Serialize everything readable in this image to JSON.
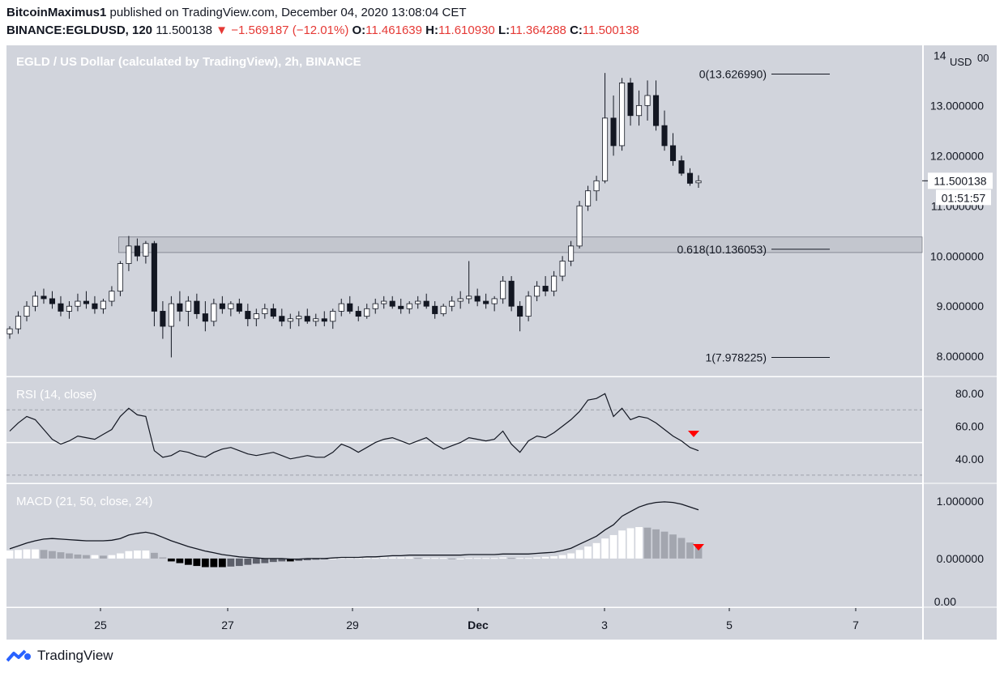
{
  "header": {
    "author": "BitcoinMaximus1",
    "published_text": "published on TradingView.com, December 04, 2020 13:08:04 CET",
    "symbol": "BINANCE:EGLDUSD, 120",
    "last": "11.500138",
    "change": "−1.569187 (−12.01%)",
    "o_label": "O:",
    "o_value": "11.461639",
    "h_label": "H:",
    "h_value": "11.610930",
    "l_label": "L:",
    "l_value": "11.364288",
    "c_label": "C:",
    "c_value": "11.500138"
  },
  "brand": {
    "name": "TradingView"
  },
  "colors": {
    "pane_bg": "#d1d4dc",
    "up_candle": "#ffffff",
    "down_candle": "#131722",
    "accent_red": "#ff0000",
    "hist_grey": "#a3a6af",
    "zone": "#c3c6ce"
  },
  "chart_data": [
    {
      "type": "candlestick",
      "title": "EGLD / US Dollar (calculated by TradingView), 2h, BINANCE",
      "y_unit": "USD",
      "ylim": [
        7.6,
        14.2
      ],
      "y_ticks": [
        "14",
        "13.000000",
        "12.000000",
        "11.000000",
        "10.000000",
        "9.000000",
        "8.000000"
      ],
      "x_ticks": [
        "25",
        "27",
        "29",
        "Dec",
        "3",
        "5",
        "7"
      ],
      "last_price_label": "11.500138",
      "countdown_label": "01:51:57",
      "fib_levels": [
        {
          "label": "0(13.626990)",
          "value": 13.62699
        },
        {
          "label": "0.618(10.136053)",
          "value": 10.136053
        },
        {
          "label": "1(7.978225)",
          "value": 7.978225
        }
      ],
      "support_zone": [
        10.07,
        10.38
      ],
      "ohlc": [
        [
          8.45,
          8.6,
          8.35,
          8.55
        ],
        [
          8.55,
          8.9,
          8.45,
          8.8
        ],
        [
          8.8,
          9.1,
          8.7,
          9.0
        ],
        [
          9.0,
          9.3,
          8.9,
          9.2
        ],
        [
          9.2,
          9.35,
          9.05,
          9.15
        ],
        [
          9.15,
          9.3,
          8.95,
          9.05
        ],
        [
          9.05,
          9.2,
          8.8,
          8.9
        ],
        [
          8.9,
          9.1,
          8.75,
          9.0
        ],
        [
          9.0,
          9.25,
          8.9,
          9.1
        ],
        [
          9.1,
          9.3,
          8.95,
          9.05
        ],
        [
          9.05,
          9.2,
          8.85,
          8.95
        ],
        [
          8.95,
          9.15,
          8.85,
          9.1
        ],
        [
          9.1,
          9.4,
          9.0,
          9.3
        ],
        [
          9.3,
          9.9,
          9.2,
          9.85
        ],
        [
          9.85,
          10.4,
          9.7,
          10.2
        ],
        [
          10.2,
          10.35,
          9.9,
          10.0
        ],
        [
          10.0,
          10.3,
          9.85,
          10.25
        ],
        [
          10.25,
          10.3,
          8.6,
          8.9
        ],
        [
          8.9,
          9.1,
          8.35,
          8.6
        ],
        [
          8.6,
          9.2,
          7.98,
          9.05
        ],
        [
          9.05,
          9.3,
          8.7,
          8.9
        ],
        [
          8.9,
          9.2,
          8.6,
          9.1
        ],
        [
          9.1,
          9.25,
          8.75,
          8.85
        ],
        [
          8.85,
          9.1,
          8.5,
          8.7
        ],
        [
          8.7,
          9.15,
          8.6,
          9.05
        ],
        [
          9.05,
          9.2,
          8.85,
          8.95
        ],
        [
          8.95,
          9.1,
          8.8,
          9.05
        ],
        [
          9.05,
          9.15,
          8.85,
          8.9
        ],
        [
          8.9,
          9.05,
          8.6,
          8.75
        ],
        [
          8.75,
          8.95,
          8.6,
          8.85
        ],
        [
          8.85,
          9.05,
          8.75,
          8.95
        ],
        [
          8.95,
          9.05,
          8.75,
          8.8
        ],
        [
          8.8,
          8.95,
          8.6,
          8.7
        ],
        [
          8.7,
          8.85,
          8.55,
          8.75
        ],
        [
          8.75,
          8.9,
          8.6,
          8.8
        ],
        [
          8.8,
          8.95,
          8.65,
          8.7
        ],
        [
          8.7,
          8.85,
          8.6,
          8.75
        ],
        [
          8.75,
          8.9,
          8.6,
          8.7
        ],
        [
          8.7,
          8.95,
          8.55,
          8.9
        ],
        [
          8.9,
          9.15,
          8.8,
          9.05
        ],
        [
          9.05,
          9.2,
          8.85,
          8.9
        ],
        [
          8.9,
          9.0,
          8.7,
          8.8
        ],
        [
          8.8,
          9.05,
          8.75,
          8.95
        ],
        [
          8.95,
          9.15,
          8.85,
          9.05
        ],
        [
          9.05,
          9.2,
          8.95,
          9.1
        ],
        [
          9.1,
          9.2,
          8.95,
          9.0
        ],
        [
          9.0,
          9.15,
          8.85,
          8.95
        ],
        [
          8.95,
          9.1,
          8.85,
          9.05
        ],
        [
          9.05,
          9.2,
          8.95,
          9.1
        ],
        [
          9.1,
          9.25,
          8.95,
          9.0
        ],
        [
          9.0,
          9.1,
          8.75,
          8.85
        ],
        [
          8.85,
          9.05,
          8.8,
          9.0
        ],
        [
          9.0,
          9.2,
          8.9,
          9.1
        ],
        [
          9.1,
          9.3,
          8.95,
          9.15
        ],
        [
          9.15,
          9.9,
          9.05,
          9.2
        ],
        [
          9.2,
          9.35,
          9.0,
          9.1
        ],
        [
          9.1,
          9.25,
          8.95,
          9.05
        ],
        [
          9.05,
          9.2,
          8.9,
          9.15
        ],
        [
          9.15,
          9.6,
          9.05,
          9.5
        ],
        [
          9.5,
          9.6,
          8.9,
          9.0
        ],
        [
          9.0,
          9.1,
          8.5,
          8.8
        ],
        [
          8.8,
          9.3,
          8.7,
          9.2
        ],
        [
          9.2,
          9.5,
          9.1,
          9.4
        ],
        [
          9.4,
          9.6,
          9.2,
          9.3
        ],
        [
          9.3,
          9.7,
          9.2,
          9.6
        ],
        [
          9.6,
          10.0,
          9.5,
          9.9
        ],
        [
          9.9,
          10.3,
          9.8,
          10.2
        ],
        [
          10.2,
          11.1,
          10.15,
          11.0
        ],
        [
          11.0,
          11.4,
          10.9,
          11.3
        ],
        [
          11.3,
          11.6,
          11.1,
          11.5
        ],
        [
          11.5,
          13.65,
          11.45,
          12.75
        ],
        [
          12.75,
          13.2,
          12.0,
          12.2
        ],
        [
          12.2,
          13.55,
          12.1,
          13.45
        ],
        [
          13.45,
          13.55,
          12.6,
          12.8
        ],
        [
          12.8,
          13.3,
          12.6,
          13.0
        ],
        [
          13.0,
          13.5,
          12.7,
          13.2
        ],
        [
          13.2,
          13.5,
          12.5,
          12.6
        ],
        [
          12.6,
          12.9,
          12.1,
          12.2
        ],
        [
          12.2,
          12.45,
          11.8,
          11.9
        ],
        [
          11.9,
          12.0,
          11.6,
          11.65
        ],
        [
          11.65,
          11.75,
          11.4,
          11.45
        ],
        [
          11.46,
          11.61,
          11.36,
          11.5
        ]
      ]
    },
    {
      "type": "line",
      "title": "RSI (14, close)",
      "ylim": [
        25,
        90
      ],
      "y_ticks": [
        "80.00",
        "60.00",
        "40.00"
      ],
      "band_lines": [
        70,
        50,
        30
      ],
      "values": [
        57,
        62,
        66,
        64,
        58,
        52,
        49,
        51,
        54,
        53,
        52,
        55,
        58,
        66,
        71,
        67,
        66,
        45,
        41,
        42,
        45,
        44,
        42,
        41,
        44,
        46,
        47,
        45,
        43,
        42,
        43,
        44,
        42,
        40,
        41,
        42,
        41,
        41,
        44,
        49,
        47,
        44,
        47,
        50,
        52,
        53,
        51,
        49,
        51,
        53,
        49,
        46,
        48,
        50,
        53,
        52,
        51,
        52,
        57,
        49,
        44,
        51,
        54,
        53,
        56,
        60,
        64,
        69,
        76,
        77,
        80,
        66,
        71,
        64,
        66,
        65,
        62,
        58,
        54,
        51,
        47,
        45
      ],
      "signal_marker": "down"
    },
    {
      "type": "line+bar",
      "title": "MACD (21, 50, close, 24)",
      "ylim": [
        -0.85,
        1.3
      ],
      "y_ticks": [
        "1.000000",
        "0.000000",
        "0.00"
      ],
      "macd_line": [
        0.17,
        0.22,
        0.27,
        0.31,
        0.34,
        0.35,
        0.34,
        0.33,
        0.32,
        0.31,
        0.31,
        0.31,
        0.32,
        0.35,
        0.41,
        0.44,
        0.46,
        0.43,
        0.37,
        0.31,
        0.26,
        0.21,
        0.17,
        0.13,
        0.1,
        0.07,
        0.05,
        0.03,
        0.02,
        0.01,
        0.0,
        0.0,
        0.0,
        -0.01,
        -0.01,
        0.0,
        0.0,
        0.0,
        0.01,
        0.02,
        0.02,
        0.02,
        0.03,
        0.03,
        0.04,
        0.05,
        0.05,
        0.06,
        0.06,
        0.06,
        0.06,
        0.06,
        0.06,
        0.06,
        0.07,
        0.07,
        0.07,
        0.07,
        0.08,
        0.08,
        0.08,
        0.08,
        0.09,
        0.1,
        0.11,
        0.14,
        0.18,
        0.25,
        0.32,
        0.39,
        0.5,
        0.59,
        0.74,
        0.82,
        0.9,
        0.95,
        0.98,
        0.99,
        0.98,
        0.95,
        0.9,
        0.85
      ],
      "histogram": [
        0.14,
        0.15,
        0.16,
        0.16,
        0.15,
        0.13,
        0.11,
        0.09,
        0.07,
        0.06,
        0.06,
        0.05,
        0.06,
        0.09,
        0.13,
        0.14,
        0.14,
        0.1,
        0.02,
        -0.05,
        -0.08,
        -0.11,
        -0.13,
        -0.15,
        -0.15,
        -0.15,
        -0.14,
        -0.13,
        -0.11,
        -0.09,
        -0.08,
        -0.06,
        -0.05,
        -0.05,
        -0.04,
        -0.03,
        -0.02,
        -0.01,
        0.0,
        0.01,
        0.01,
        0.01,
        0.01,
        0.01,
        0.02,
        0.02,
        0.02,
        0.02,
        0.01,
        0.01,
        0.01,
        0.01,
        0.0,
        0.0,
        0.01,
        0.01,
        0.01,
        0.01,
        0.02,
        0.01,
        0.01,
        0.01,
        0.02,
        0.03,
        0.04,
        0.06,
        0.09,
        0.15,
        0.21,
        0.27,
        0.35,
        0.41,
        0.49,
        0.53,
        0.55,
        0.54,
        0.51,
        0.47,
        0.42,
        0.36,
        0.28,
        0.21
      ],
      "signal_marker": "down"
    }
  ]
}
